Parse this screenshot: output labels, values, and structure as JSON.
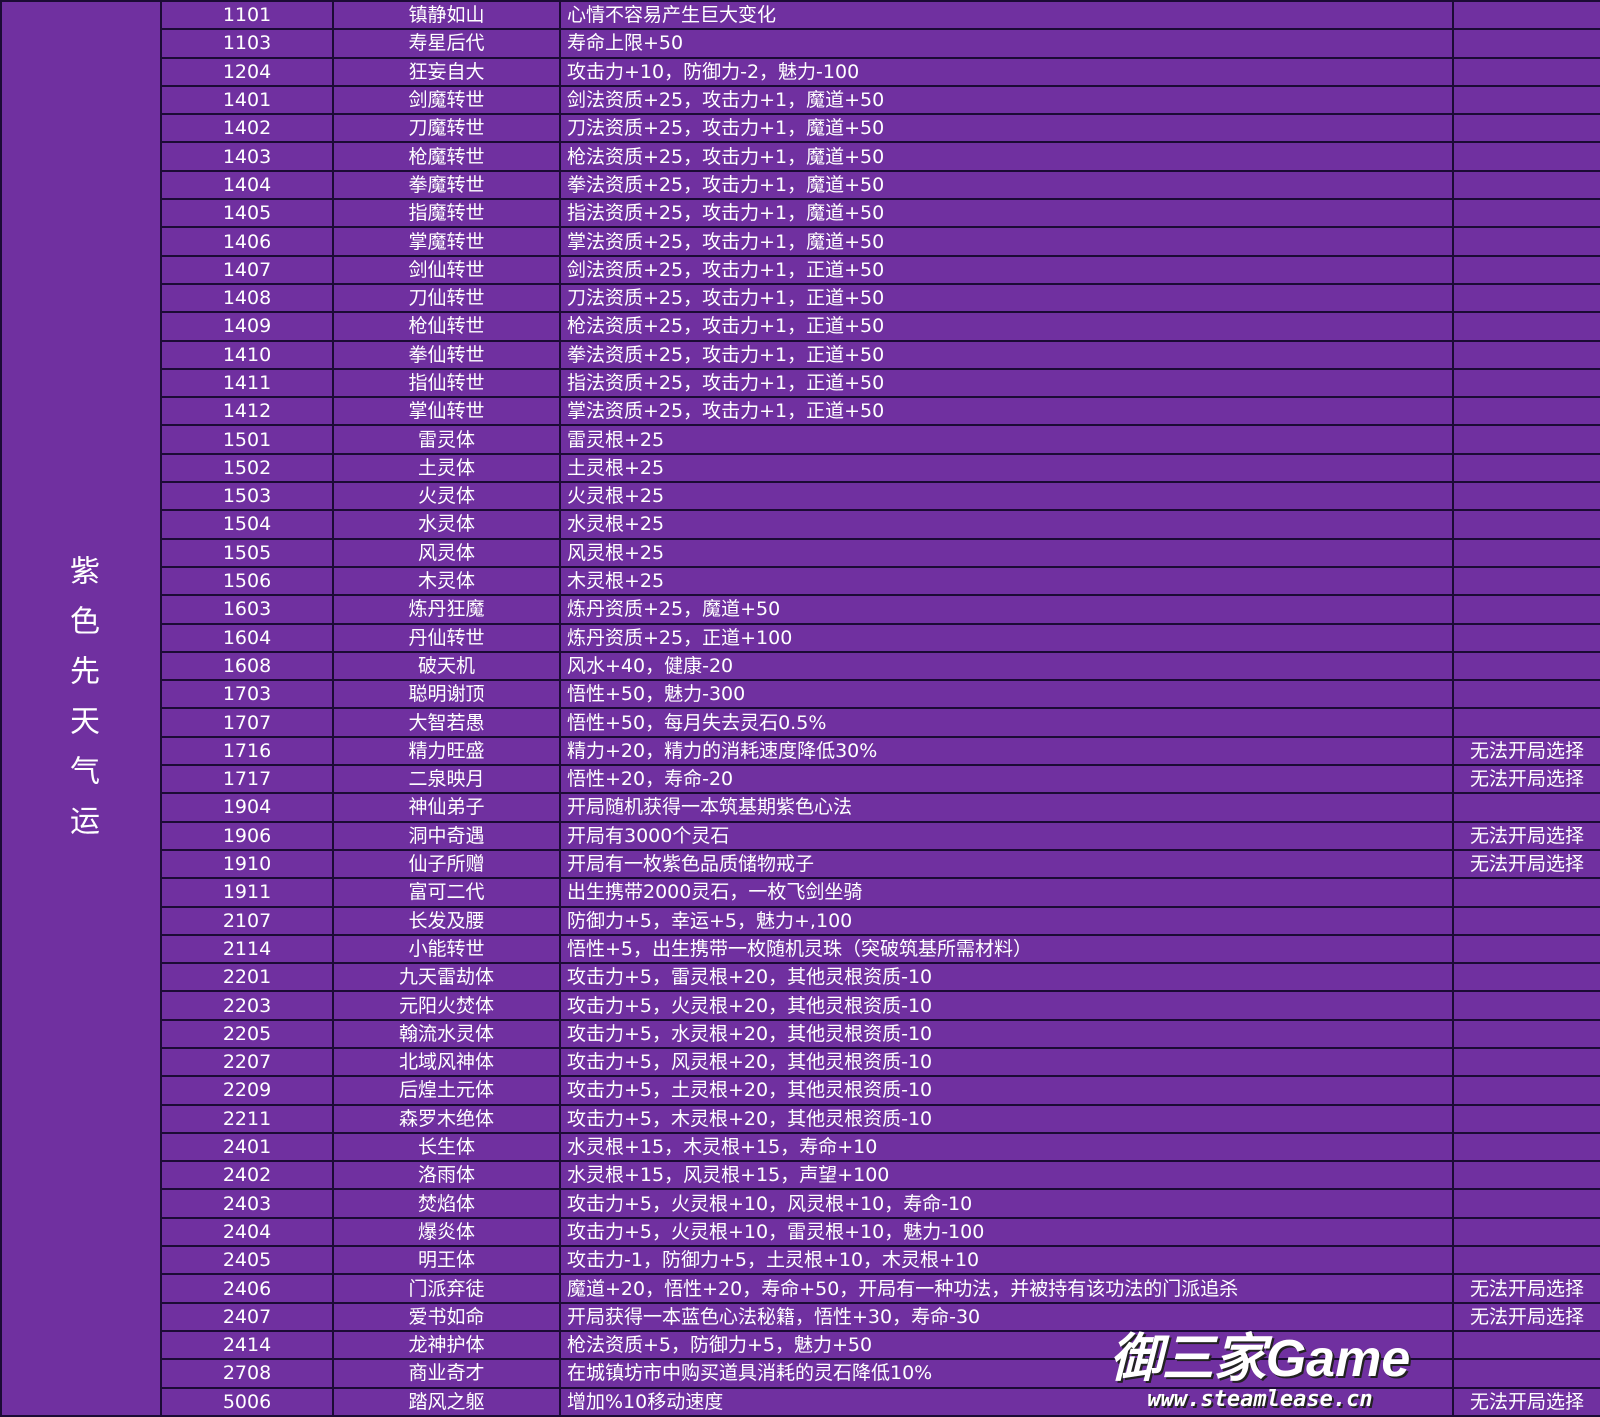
{
  "category": "紫色先天气运",
  "colors": {
    "background": "#7030a0",
    "border": "#1c0b35",
    "text": "#ffffff",
    "warning": "#ff1a3a"
  },
  "watermark": {
    "title": "御三家Game",
    "url": "www.steamlease.cn"
  },
  "rows": [
    {
      "id": "1101",
      "name": "镇静如山",
      "effect": "心情不容易产生巨大变化",
      "note": ""
    },
    {
      "id": "1103",
      "name": "寿星后代",
      "effect": "寿命上限+50",
      "note": ""
    },
    {
      "id": "1204",
      "name": "狂妄自大",
      "effect": "攻击力+10，防御力-2，魅力-100",
      "note": ""
    },
    {
      "id": "1401",
      "name": "剑魔转世",
      "effect": "剑法资质+25，攻击力+1，魔道+50",
      "note": ""
    },
    {
      "id": "1402",
      "name": "刀魔转世",
      "effect": "刀法资质+25，攻击力+1，魔道+50",
      "note": ""
    },
    {
      "id": "1403",
      "name": "枪魔转世",
      "effect": "枪法资质+25，攻击力+1，魔道+50",
      "note": ""
    },
    {
      "id": "1404",
      "name": "拳魔转世",
      "effect": "拳法资质+25，攻击力+1，魔道+50",
      "note": ""
    },
    {
      "id": "1405",
      "name": "指魔转世",
      "effect": "指法资质+25，攻击力+1，魔道+50",
      "note": ""
    },
    {
      "id": "1406",
      "name": "掌魔转世",
      "effect": "掌法资质+25，攻击力+1，魔道+50",
      "note": ""
    },
    {
      "id": "1407",
      "name": "剑仙转世",
      "effect": "剑法资质+25，攻击力+1，正道+50",
      "note": ""
    },
    {
      "id": "1408",
      "name": "刀仙转世",
      "effect": "刀法资质+25，攻击力+1，正道+50",
      "note": ""
    },
    {
      "id": "1409",
      "name": "枪仙转世",
      "effect": "枪法资质+25，攻击力+1，正道+50",
      "note": ""
    },
    {
      "id": "1410",
      "name": "拳仙转世",
      "effect": "拳法资质+25，攻击力+1，正道+50",
      "note": ""
    },
    {
      "id": "1411",
      "name": "指仙转世",
      "effect": "指法资质+25，攻击力+1，正道+50",
      "note": ""
    },
    {
      "id": "1412",
      "name": "掌仙转世",
      "effect": "掌法资质+25，攻击力+1，正道+50",
      "note": ""
    },
    {
      "id": "1501",
      "name": "雷灵体",
      "effect": "雷灵根+25",
      "note": ""
    },
    {
      "id": "1502",
      "name": "土灵体",
      "effect": "土灵根+25",
      "note": ""
    },
    {
      "id": "1503",
      "name": "火灵体",
      "effect": "火灵根+25",
      "note": ""
    },
    {
      "id": "1504",
      "name": "水灵体",
      "effect": "水灵根+25",
      "note": ""
    },
    {
      "id": "1505",
      "name": "风灵体",
      "effect": "风灵根+25",
      "note": ""
    },
    {
      "id": "1506",
      "name": "木灵体",
      "effect": "木灵根+25",
      "note": ""
    },
    {
      "id": "1603",
      "name": "炼丹狂魔",
      "effect": "炼丹资质+25，魔道+50",
      "note": ""
    },
    {
      "id": "1604",
      "name": "丹仙转世",
      "effect": "炼丹资质+25，正道+100",
      "note": ""
    },
    {
      "id": "1608",
      "name": "破天机",
      "effect": "风水+40，健康-20",
      "note": ""
    },
    {
      "id": "1703",
      "name": "聪明谢顶",
      "effect": "悟性+50，魅力-300",
      "note": ""
    },
    {
      "id": "1707",
      "name": "大智若愚",
      "effect": "悟性+50，每月失去灵石0.5%",
      "note": ""
    },
    {
      "id": "1716",
      "name": "精力旺盛",
      "effect": "精力+20，精力的消耗速度降低30%",
      "note": "无法开局选择"
    },
    {
      "id": "1717",
      "name": "二泉映月",
      "effect": "悟性+20，寿命-20",
      "note": "无法开局选择"
    },
    {
      "id": "1904",
      "name": "神仙弟子",
      "effect": "开局随机获得一本筑基期紫色心法",
      "note": ""
    },
    {
      "id": "1906",
      "name": "洞中奇遇",
      "effect": "开局有3000个灵石",
      "note": "无法开局选择"
    },
    {
      "id": "1910",
      "name": "仙子所赠",
      "effect": "开局有一枚紫色品质储物戒子",
      "note": "无法开局选择"
    },
    {
      "id": "1911",
      "name": "富可二代",
      "effect": "出生携带2000灵石，一枚飞剑坐骑",
      "note": ""
    },
    {
      "id": "2107",
      "name": "长发及腰",
      "effect": "防御力+5，幸运+5，魅力+,100",
      "note": ""
    },
    {
      "id": "2114",
      "name": "小能转世",
      "effect": "悟性+5，出生携带一枚随机灵珠（突破筑基所需材料）",
      "note": ""
    },
    {
      "id": "2201",
      "name": "九天雷劫体",
      "effect": "攻击力+5，雷灵根+20，其他灵根资质-10",
      "note": ""
    },
    {
      "id": "2203",
      "name": "元阳火焚体",
      "effect": "攻击力+5，火灵根+20，其他灵根资质-10",
      "note": ""
    },
    {
      "id": "2205",
      "name": "翰流水灵体",
      "effect": "攻击力+5，水灵根+20，其他灵根资质-10",
      "note": ""
    },
    {
      "id": "2207",
      "name": "北域风神体",
      "effect": "攻击力+5，风灵根+20，其他灵根资质-10",
      "note": ""
    },
    {
      "id": "2209",
      "name": "后煌土元体",
      "effect": "攻击力+5，土灵根+20，其他灵根资质-10",
      "note": ""
    },
    {
      "id": "2211",
      "name": "森罗木绝体",
      "effect": "攻击力+5，木灵根+20，其他灵根资质-10",
      "note": ""
    },
    {
      "id": "2401",
      "name": "长生体",
      "effect": "水灵根+15，木灵根+15，寿命+10",
      "note": ""
    },
    {
      "id": "2402",
      "name": "洛雨体",
      "effect": "水灵根+15，风灵根+15，声望+100",
      "note": ""
    },
    {
      "id": "2403",
      "name": "焚焰体",
      "effect": "攻击力+5，火灵根+10，风灵根+10，寿命-10",
      "note": ""
    },
    {
      "id": "2404",
      "name": "爆炎体",
      "effect": "攻击力+5，火灵根+10，雷灵根+10，魅力-100",
      "note": ""
    },
    {
      "id": "2405",
      "name": "明王体",
      "effect": "攻击力-1，防御力+5，土灵根+10，木灵根+10",
      "note": ""
    },
    {
      "id": "2406",
      "name": "门派弃徒",
      "effect": "魔道+20，悟性+20，寿命+50，开局有一种功法，并被持有该功法的门派追杀",
      "note": "无法开局选择"
    },
    {
      "id": "2407",
      "name": "爱书如命",
      "effect": "开局获得一本蓝色心法秘籍，悟性+30，寿命-30",
      "note": "无法开局选择"
    },
    {
      "id": "2414",
      "name": "龙神护体",
      "effect": "枪法资质+5，防御力+5，魅力+50",
      "note": ""
    },
    {
      "id": "2708",
      "name": "商业奇才",
      "effect": "在城镇坊市中购买道具消耗的灵石降低10%",
      "note": ""
    },
    {
      "id": "5006",
      "name": "踏风之躯",
      "effect": "增加%10移动速度",
      "note": "无法开局选择"
    }
  ]
}
